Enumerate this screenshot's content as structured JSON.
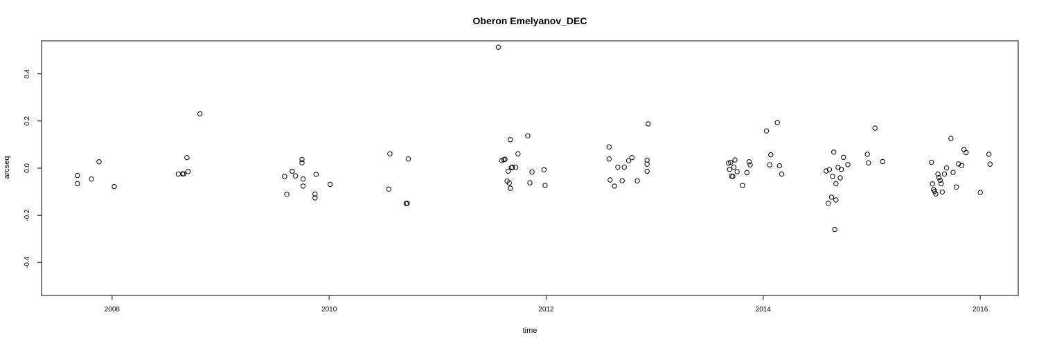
{
  "chart_data": {
    "type": "scatter",
    "title": "Oberon Emelyanov_DEC",
    "xlabel": "time",
    "ylabel": "arcseq",
    "xlim": [
      2007.35,
      2016.35
    ],
    "ylim": [
      -0.54,
      0.54
    ],
    "xticks": [
      2008,
      2010,
      2012,
      2014,
      2016
    ],
    "xtick_labels": [
      "2008",
      "2010",
      "2012",
      "2014",
      "2016"
    ],
    "yticks": [
      -0.4,
      -0.2,
      0.0,
      0.2,
      0.4
    ],
    "ytick_labels": [
      "-0.4",
      "-0.2",
      "0.0",
      "0.2",
      "0.4"
    ],
    "grid": false,
    "marker": "open-circle",
    "points": [
      {
        "x": 2007.68,
        "y": -0.031
      },
      {
        "x": 2007.68,
        "y": -0.066
      },
      {
        "x": 2007.81,
        "y": -0.046
      },
      {
        "x": 2007.88,
        "y": 0.027
      },
      {
        "x": 2008.02,
        "y": -0.078
      },
      {
        "x": 2008.61,
        "y": -0.025
      },
      {
        "x": 2008.65,
        "y": -0.024
      },
      {
        "x": 2008.66,
        "y": -0.024
      },
      {
        "x": 2008.69,
        "y": 0.045
      },
      {
        "x": 2008.7,
        "y": -0.014
      },
      {
        "x": 2008.81,
        "y": 0.23
      },
      {
        "x": 2009.59,
        "y": -0.035
      },
      {
        "x": 2009.61,
        "y": -0.111
      },
      {
        "x": 2009.66,
        "y": -0.013
      },
      {
        "x": 2009.69,
        "y": -0.033
      },
      {
        "x": 2009.75,
        "y": 0.037
      },
      {
        "x": 2009.75,
        "y": 0.023
      },
      {
        "x": 2009.76,
        "y": -0.046
      },
      {
        "x": 2009.76,
        "y": -0.076
      },
      {
        "x": 2009.87,
        "y": -0.11
      },
      {
        "x": 2009.87,
        "y": -0.126
      },
      {
        "x": 2009.88,
        "y": -0.026
      },
      {
        "x": 2010.01,
        "y": -0.069
      },
      {
        "x": 2010.55,
        "y": -0.089
      },
      {
        "x": 2010.56,
        "y": 0.061
      },
      {
        "x": 2010.71,
        "y": -0.15
      },
      {
        "x": 2010.72,
        "y": -0.149
      },
      {
        "x": 2010.73,
        "y": 0.039
      },
      {
        "x": 2011.56,
        "y": 0.513
      },
      {
        "x": 2011.59,
        "y": 0.032
      },
      {
        "x": 2011.61,
        "y": 0.036
      },
      {
        "x": 2011.62,
        "y": 0.038
      },
      {
        "x": 2011.64,
        "y": -0.055
      },
      {
        "x": 2011.65,
        "y": -0.013
      },
      {
        "x": 2011.66,
        "y": -0.063
      },
      {
        "x": 2011.67,
        "y": -0.085
      },
      {
        "x": 2011.67,
        "y": 0.121
      },
      {
        "x": 2011.68,
        "y": 0.002
      },
      {
        "x": 2011.69,
        "y": 0.004
      },
      {
        "x": 2011.72,
        "y": 0.004
      },
      {
        "x": 2011.74,
        "y": 0.061
      },
      {
        "x": 2011.83,
        "y": 0.137
      },
      {
        "x": 2011.85,
        "y": -0.062
      },
      {
        "x": 2011.87,
        "y": -0.016
      },
      {
        "x": 2011.98,
        "y": -0.007
      },
      {
        "x": 2011.99,
        "y": -0.073
      },
      {
        "x": 2012.58,
        "y": 0.09
      },
      {
        "x": 2012.58,
        "y": 0.039
      },
      {
        "x": 2012.59,
        "y": -0.05
      },
      {
        "x": 2012.63,
        "y": -0.076
      },
      {
        "x": 2012.66,
        "y": 0.004
      },
      {
        "x": 2012.7,
        "y": -0.053
      },
      {
        "x": 2012.72,
        "y": 0.004
      },
      {
        "x": 2012.76,
        "y": 0.032
      },
      {
        "x": 2012.79,
        "y": 0.045
      },
      {
        "x": 2012.84,
        "y": -0.054
      },
      {
        "x": 2012.93,
        "y": 0.034
      },
      {
        "x": 2012.93,
        "y": 0.017
      },
      {
        "x": 2012.93,
        "y": -0.013
      },
      {
        "x": 2012.94,
        "y": 0.188
      },
      {
        "x": 2013.68,
        "y": 0.021
      },
      {
        "x": 2013.69,
        "y": -0.005
      },
      {
        "x": 2013.7,
        "y": 0.024
      },
      {
        "x": 2013.71,
        "y": -0.034
      },
      {
        "x": 2013.72,
        "y": -0.035
      },
      {
        "x": 2013.73,
        "y": 0.004
      },
      {
        "x": 2013.74,
        "y": 0.035
      },
      {
        "x": 2013.76,
        "y": -0.015
      },
      {
        "x": 2013.81,
        "y": -0.073
      },
      {
        "x": 2013.85,
        "y": -0.019
      },
      {
        "x": 2013.87,
        "y": 0.027
      },
      {
        "x": 2013.88,
        "y": 0.014
      },
      {
        "x": 2014.03,
        "y": 0.158
      },
      {
        "x": 2014.06,
        "y": 0.014
      },
      {
        "x": 2014.07,
        "y": 0.057
      },
      {
        "x": 2014.13,
        "y": 0.193
      },
      {
        "x": 2014.15,
        "y": 0.01
      },
      {
        "x": 2014.17,
        "y": -0.025
      },
      {
        "x": 2014.58,
        "y": -0.012
      },
      {
        "x": 2014.6,
        "y": -0.149
      },
      {
        "x": 2014.61,
        "y": -0.006
      },
      {
        "x": 2014.63,
        "y": -0.123
      },
      {
        "x": 2014.64,
        "y": -0.035
      },
      {
        "x": 2014.65,
        "y": 0.068
      },
      {
        "x": 2014.66,
        "y": -0.26
      },
      {
        "x": 2014.67,
        "y": -0.135
      },
      {
        "x": 2014.67,
        "y": -0.066
      },
      {
        "x": 2014.69,
        "y": 0.003
      },
      {
        "x": 2014.71,
        "y": -0.041
      },
      {
        "x": 2014.72,
        "y": -0.005
      },
      {
        "x": 2014.74,
        "y": 0.046
      },
      {
        "x": 2014.78,
        "y": 0.015
      },
      {
        "x": 2014.96,
        "y": 0.059
      },
      {
        "x": 2014.97,
        "y": 0.022
      },
      {
        "x": 2015.03,
        "y": 0.17
      },
      {
        "x": 2015.1,
        "y": 0.028
      },
      {
        "x": 2015.55,
        "y": 0.025
      },
      {
        "x": 2015.56,
        "y": -0.067
      },
      {
        "x": 2015.57,
        "y": -0.091
      },
      {
        "x": 2015.58,
        "y": -0.098
      },
      {
        "x": 2015.59,
        "y": -0.109
      },
      {
        "x": 2015.61,
        "y": -0.025
      },
      {
        "x": 2015.62,
        "y": -0.04
      },
      {
        "x": 2015.63,
        "y": -0.051
      },
      {
        "x": 2015.64,
        "y": -0.066
      },
      {
        "x": 2015.65,
        "y": -0.101
      },
      {
        "x": 2015.67,
        "y": -0.025
      },
      {
        "x": 2015.69,
        "y": 0.001
      },
      {
        "x": 2015.73,
        "y": 0.126
      },
      {
        "x": 2015.75,
        "y": -0.018
      },
      {
        "x": 2015.78,
        "y": -0.08
      },
      {
        "x": 2015.8,
        "y": 0.018
      },
      {
        "x": 2015.83,
        "y": 0.011
      },
      {
        "x": 2015.85,
        "y": 0.079
      },
      {
        "x": 2015.87,
        "y": 0.066
      },
      {
        "x": 2016.0,
        "y": -0.103
      },
      {
        "x": 2016.08,
        "y": 0.059
      },
      {
        "x": 2016.09,
        "y": 0.017
      }
    ]
  }
}
